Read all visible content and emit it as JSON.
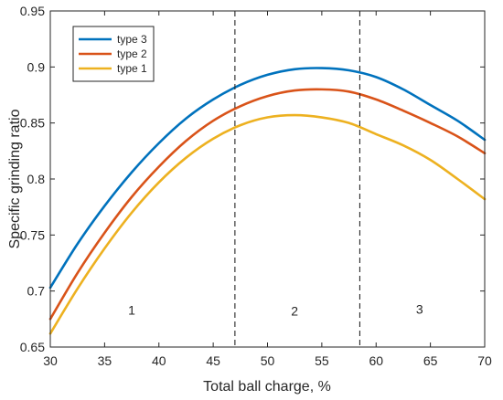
{
  "chart_data": {
    "type": "line",
    "xlabel": "Total ball charge, %",
    "ylabel": "Specific grinding ratio",
    "xlim": [
      30,
      70
    ],
    "ylim": [
      0.65,
      0.95
    ],
    "xticks": [
      30,
      35,
      40,
      45,
      50,
      55,
      60,
      65,
      70
    ],
    "yticks": [
      0.65,
      0.7,
      0.75,
      0.8,
      0.85,
      0.9,
      0.95
    ],
    "xtick_labels": [
      "30",
      "35",
      "40",
      "45",
      "50",
      "55",
      "60",
      "65",
      "70"
    ],
    "ytick_labels": [
      "0.65",
      "0.7",
      "0.75",
      "0.8",
      "0.85",
      "0.9",
      "0.95"
    ],
    "grid": false,
    "legend_position": "top-left",
    "series": [
      {
        "name": "type 3",
        "color": "#0072BD",
        "x": [
          30,
          32.5,
          35,
          37.5,
          40,
          42.5,
          45,
          47.5,
          50,
          52.5,
          55,
          57.5,
          60,
          62.5,
          65,
          67.5,
          70
        ],
        "y": [
          0.703,
          0.742,
          0.776,
          0.806,
          0.832,
          0.854,
          0.871,
          0.884,
          0.893,
          0.898,
          0.899,
          0.897,
          0.891,
          0.88,
          0.866,
          0.852,
          0.835
        ]
      },
      {
        "name": "type 2",
        "color": "#D95319",
        "x": [
          30,
          32.5,
          35,
          37.5,
          40,
          42.5,
          45,
          47.5,
          50,
          52.5,
          55,
          57.5,
          60,
          62.5,
          65,
          67.5,
          70
        ],
        "y": [
          0.675,
          0.716,
          0.752,
          0.784,
          0.811,
          0.834,
          0.852,
          0.865,
          0.874,
          0.879,
          0.88,
          0.878,
          0.871,
          0.861,
          0.85,
          0.838,
          0.823
        ]
      },
      {
        "name": "type 1",
        "color": "#EDB120",
        "x": [
          30,
          32.5,
          35,
          37.5,
          40,
          42.5,
          45,
          47.5,
          50,
          52.5,
          55,
          57.5,
          60,
          62.5,
          65,
          67.5,
          70
        ],
        "y": [
          0.662,
          0.702,
          0.738,
          0.77,
          0.797,
          0.819,
          0.836,
          0.848,
          0.855,
          0.857,
          0.855,
          0.85,
          0.84,
          0.83,
          0.817,
          0.8,
          0.782
        ]
      }
    ],
    "vlines": [
      47,
      58.5
    ],
    "annotations": [
      {
        "text": "1",
        "x": 37.5,
        "y": 0.683
      },
      {
        "text": "2",
        "x": 52.5,
        "y": 0.682
      },
      {
        "text": "3",
        "x": 64,
        "y": 0.684
      }
    ]
  }
}
